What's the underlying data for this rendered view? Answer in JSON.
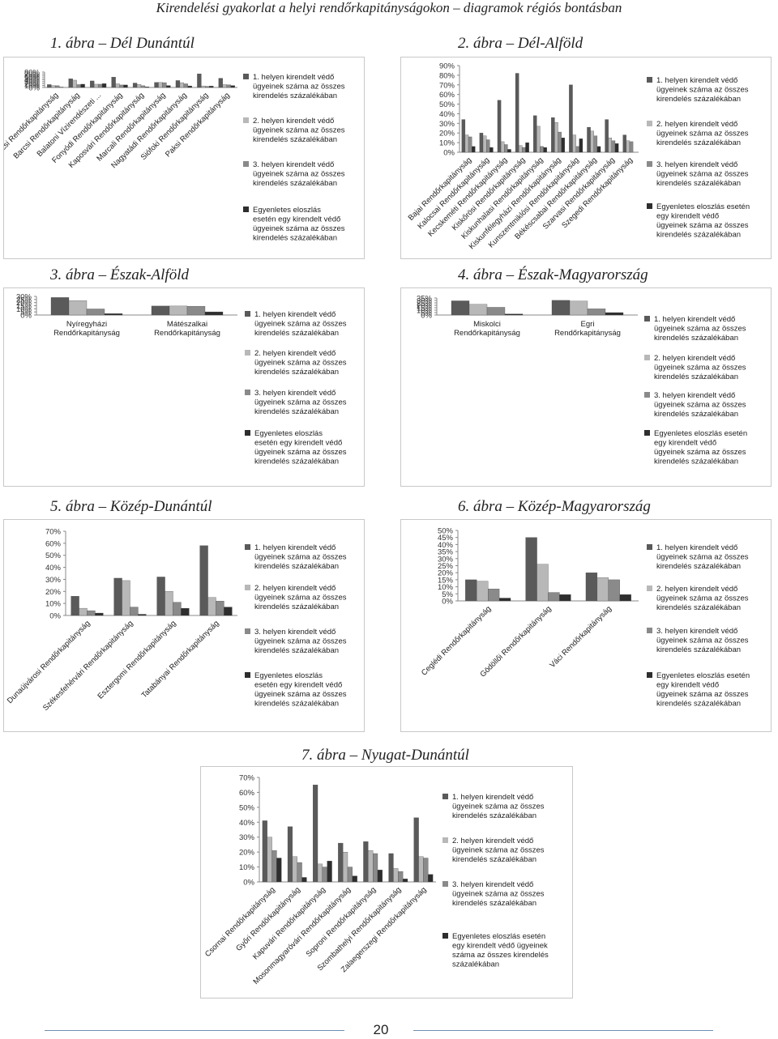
{
  "page": {
    "header": "Kirendelési gyakorlat a helyi rendőrkapitányságokon – diagramok régiós bontásban",
    "page_number": "20"
  },
  "legend": [
    "1. helyen kirendelt védő ügyeinek száma az összes kirendelés százalékában",
    "2. helyen kirendelt védő ügyeinek száma az összes kirendelés százalékában",
    "3. helyen kirendelt védő ügyeinek száma az összes kirendelés százalékában",
    "Egyenletes eloszlás esetén egy kirendelt védő ügyeinek száma az összes kirendelés százalékában"
  ],
  "colors": {
    "s1": "#5a5a5a",
    "s2": "#b8b8b8",
    "s3": "#8a8a8a",
    "s4": "#2e2e2e"
  },
  "captions": [
    "1. ábra – Dél Dunántúl",
    "2. ábra – Dél-Alföld",
    "3. ábra – Észak-Alföld",
    "4. ábra – Észak-Magyarország",
    "5. ábra – Közép-Dunántúl",
    "6. ábra – Közép-Magyarország",
    "7. ábra – Nyugat-Dunántúl"
  ],
  "chart_data": [
    {
      "type": "bar",
      "title": "1. ábra – Dél Dunántúl",
      "ylim": [
        0,
        80
      ],
      "ytick_step": 10,
      "yticks": [
        "0%",
        "10%",
        "20%",
        "30%",
        "40%",
        "50%",
        "60%",
        "70%",
        "80%"
      ],
      "categories": [
        "Pécsi Rendőrkapitányság",
        "Barcsi Rendőrkapitányság",
        "Balatoni Vízirendészeti ...",
        "Fonyódi Rendőrkapitányság",
        "Kaposvári Rendőrkapitányság",
        "Marcali Rendőrkapitányság",
        "Nagyatádi Rendőrkapitányság",
        "Siófoki Rendőrkapitányság",
        "Paksi Rendőrkapitányság"
      ],
      "series": [
        {
          "name": "1. helyen kirendelt védő ügyeinek száma az összes kirendelés százalékában",
          "values": [
            15,
            45,
            34,
            54,
            23,
            26,
            36,
            71,
            48
          ]
        },
        {
          "name": "2. helyen kirendelt védő ügyeinek száma az összes kirendelés százalékában",
          "values": [
            10,
            38,
            17,
            19,
            16,
            26,
            25,
            8,
            15
          ]
        },
        {
          "name": "3. helyen kirendelt védő ügyeinek száma az összes kirendelés százalékában",
          "values": [
            9,
            15,
            17,
            13,
            9,
            25,
            19,
            6,
            14
          ]
        },
        {
          "name": "Egyenletes eloszlás esetén egy kirendelt védő ügyeinek száma az összes kirendelés százalékában",
          "values": [
            2,
            17,
            20,
            13,
            3,
            10,
            8,
            7,
            10
          ]
        }
      ]
    },
    {
      "type": "bar",
      "title": "2. ábra – Dél-Alföld",
      "ylim": [
        0,
        90
      ],
      "ytick_step": 10,
      "yticks": [
        "0%",
        "10%",
        "20%",
        "30%",
        "40%",
        "50%",
        "60%",
        "70%",
        "80%",
        "90%"
      ],
      "categories": [
        "Bajai Rendőrkapitányság",
        "Kalocsai Rendőrkapitányság",
        "Kecskeméti Rendőrkapitányság",
        "Kiskőrösi Rendőrkapitányság",
        "Kiskunhalasi Rendőrkapitányság",
        "Kiskunfélegyházi Rendőrkapitányság",
        "Kunszentmiklósi Rendőrkapitányság",
        "Békéscsabai Rendőrkapitányság",
        "Szarvasi Rendőrkapitányság",
        "Szegedi Rendőrkapitányság"
      ],
      "series": [
        {
          "name": "1. helyen kirendelt védő ügyeinek száma az összes kirendelés százalékában",
          "values": [
            34,
            20,
            54,
            82,
            38,
            36,
            70,
            26,
            34,
            18
          ]
        },
        {
          "name": "2. helyen kirendelt védő ügyeinek száma az összes kirendelés százalékában",
          "values": [
            18,
            17,
            11,
            7,
            27,
            31,
            18,
            22,
            15,
            12
          ]
        },
        {
          "name": "3. helyen kirendelt védő ügyeinek száma az összes kirendelés százalékában",
          "values": [
            16,
            13,
            8,
            5,
            6,
            21,
            6,
            17,
            12,
            11
          ]
        },
        {
          "name": "Egyenletes eloszlás esetén egy kirendelt védő ügyeinek száma az összes kirendelés százalékában",
          "values": [
            6,
            5,
            3,
            10,
            5,
            15,
            14,
            6,
            9,
            0
          ]
        }
      ]
    },
    {
      "type": "bar",
      "title": "3. ábra – Észak-Alföld",
      "ylim": [
        0,
        30
      ],
      "ytick_step": 5,
      "yticks": [
        "0%",
        "5%",
        "10%",
        "15%",
        "20%",
        "25%",
        "30%"
      ],
      "categories": [
        "Nyíregyházi Rendőrkapitányság",
        "Mátészalkai Rendőrkapitányság"
      ],
      "series": [
        {
          "name": "1. helyen kirendelt védő ügyeinek száma az összes kirendelés százalékában",
          "values": [
            28.2,
            14.5
          ]
        },
        {
          "name": "2. helyen kirendelt védő ügyeinek száma az összes kirendelés százalékában",
          "values": [
            23.2,
            14.5
          ]
        },
        {
          "name": "3. helyen kirendelt védő ügyeinek száma az összes kirendelés százalékában",
          "values": [
            9.8,
            14.2
          ]
        },
        {
          "name": "Egyenletes eloszlás esetén egy kirendelt védő ügyeinek száma az összes kirendelés százalékában",
          "values": [
            2.2,
            5.1
          ]
        }
      ]
    },
    {
      "type": "bar",
      "title": "4. ábra – Észak-Magyarország",
      "ylim": [
        0,
        35
      ],
      "ytick_step": 5,
      "yticks": [
        "0%",
        "5%",
        "10%",
        "15%",
        "20%",
        "25%",
        "30%",
        "35%"
      ],
      "categories": [
        "Miskolci Rendőrkapitányság",
        "Egri Rendőrkapitányság"
      ],
      "series": [
        {
          "name": "1. helyen kirendelt védő ügyeinek száma az összes kirendelés százalékában",
          "values": [
            29.2,
            30.2
          ]
        },
        {
          "name": "2. helyen kirendelt védő ügyeinek száma az összes kirendelés százalékában",
          "values": [
            22.1,
            28.7
          ]
        },
        {
          "name": "3. helyen kirendelt védő ügyeinek száma az összes kirendelés százalékában",
          "values": [
            15.9,
            12.8
          ]
        },
        {
          "name": "Egyenletes eloszlás esetén egy kirendelt védő ügyeinek száma az összes kirendelés százalékában",
          "values": [
            2.2,
            5
          ]
        }
      ]
    },
    {
      "type": "bar",
      "title": "5. ábra – Közép-Dunántúl",
      "ylim": [
        0,
        70
      ],
      "ytick_step": 10,
      "yticks": [
        "0%",
        "10%",
        "20%",
        "30%",
        "40%",
        "50%",
        "60%",
        "70%"
      ],
      "categories": [
        "Dunaújvárosi Rendőrkapitányság",
        "Székesfehérvári Rendőrkapitányság",
        "Esztergomi Rendőrkapitányság",
        "Tatabányai Rendőrkapitányság"
      ],
      "series": [
        {
          "name": "1. helyen kirendelt védő ügyeinek száma az összes kirendelés százalékában",
          "values": [
            16,
            31,
            32,
            58
          ]
        },
        {
          "name": "2. helyen kirendelt védő ügyeinek száma az összes kirendelés százalékában",
          "values": [
            6,
            29,
            20,
            15
          ]
        },
        {
          "name": "3. helyen kirendelt védő ügyeinek száma az összes kirendelés százalékában",
          "values": [
            4,
            7,
            11,
            12
          ]
        },
        {
          "name": "Egyenletes eloszlás esetén egy kirendelt védő ügyeinek száma az összes kirendelés százalékában",
          "values": [
            2,
            1,
            6,
            7
          ]
        }
      ]
    },
    {
      "type": "bar",
      "title": "6. ábra – Közép-Magyarország",
      "ylim": [
        0,
        50
      ],
      "ytick_step": 5,
      "yticks": [
        "0%",
        "5%",
        "10%",
        "15%",
        "20%",
        "25%",
        "30%",
        "35%",
        "40%",
        "45%",
        "50%"
      ],
      "categories": [
        "Ceglédi Rendőrkapitányság",
        "Gödöllői Rendőrkapitányság",
        "Váci Rendőrkapitányság"
      ],
      "series": [
        {
          "name": "1. helyen kirendelt védő ügyeinek száma az összes kirendelés százalékában",
          "values": [
            15,
            45,
            20
          ]
        },
        {
          "name": "2. helyen kirendelt védő ügyeinek száma az összes kirendelés százalékában",
          "values": [
            14,
            26,
            16.5
          ]
        },
        {
          "name": "3. helyen kirendelt védő ügyeinek száma az összes kirendelés százalékában",
          "values": [
            8.5,
            6,
            15
          ]
        },
        {
          "name": "Egyenletes eloszlás esetén egy kirendelt védő ügyeinek száma az összes kirendelés százalékában",
          "values": [
            2,
            4.5,
            4.5
          ]
        }
      ]
    },
    {
      "type": "bar",
      "title": "7. ábra – Nyugat-Dunántúl",
      "ylim": [
        0,
        70
      ],
      "ytick_step": 10,
      "yticks": [
        "0%",
        "10%",
        "20%",
        "30%",
        "40%",
        "50%",
        "60%",
        "70%"
      ],
      "categories": [
        "Csornai Rendőrkapitányság",
        "Győri Rendőrkapitányság",
        "Kapuvári Rendőrkapitányság",
        "Mosonmagyaróvári Rendőrkapitányság",
        "Soproni Rendőrkapitányság",
        "Szombathelyi Rendőrkapitányság",
        "Zalaegerszegi Rendőrkapitányság"
      ],
      "series": [
        {
          "name": "1. helyen kirendelt védő ügyeinek száma az összes kirendelés százalékában",
          "values": [
            41,
            37,
            65,
            26,
            27,
            19,
            43
          ]
        },
        {
          "name": "2. helyen kirendelt védő ügyeinek száma az összes kirendelés százalékában",
          "values": [
            30,
            17,
            12,
            20,
            21,
            9,
            17
          ]
        },
        {
          "name": "3. helyen kirendelt védő ügyeinek száma az összes kirendelés százalékában",
          "values": [
            21,
            13,
            10,
            10,
            19,
            7,
            16
          ]
        },
        {
          "name": "Egyenletes eloszlás esetén egy kirendelt védő ügyeinek száma az összes kirendelés százalékában",
          "values": [
            16,
            3,
            14,
            4,
            8,
            2,
            5
          ]
        }
      ]
    }
  ]
}
